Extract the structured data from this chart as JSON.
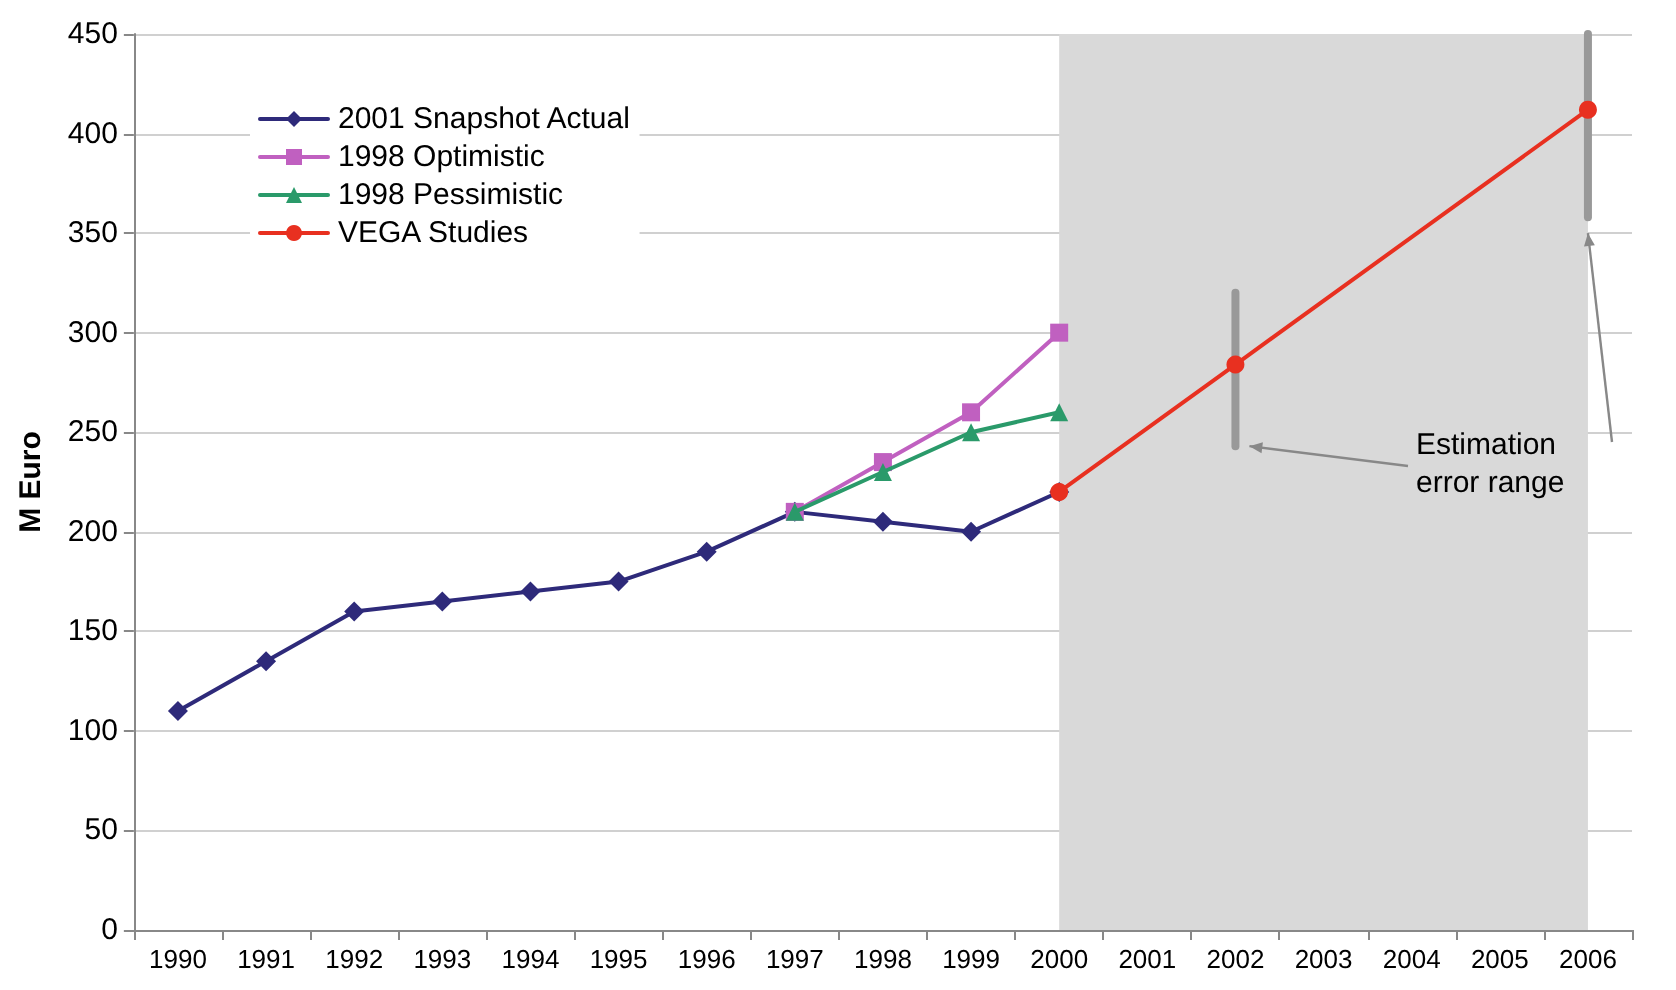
{
  "chart_data": {
    "type": "line",
    "ylabel": "M Euro",
    "categories": [
      "1990",
      "1991",
      "1992",
      "1993",
      "1994",
      "1995",
      "1996",
      "1997",
      "1998",
      "1999",
      "2000",
      "2001",
      "2002",
      "2003",
      "2004",
      "2005",
      "2006"
    ],
    "series": [
      {
        "name": "2001 Snapshot Actual",
        "color": "#2e2a7a",
        "marker": "diamond",
        "values": [
          110,
          135,
          160,
          165,
          170,
          175,
          190,
          210,
          205,
          200,
          220,
          null,
          null,
          null,
          null,
          null,
          null
        ]
      },
      {
        "name": "1998 Optimistic",
        "color": "#c060c0",
        "marker": "square",
        "values": [
          null,
          null,
          null,
          null,
          null,
          null,
          null,
          210,
          235,
          260,
          300,
          null,
          null,
          null,
          null,
          null,
          null
        ]
      },
      {
        "name": "1998 Pessimistic",
        "color": "#2a9a6a",
        "marker": "triangle",
        "values": [
          null,
          null,
          null,
          null,
          null,
          null,
          null,
          210,
          230,
          250,
          260,
          null,
          null,
          null,
          null,
          null,
          null
        ]
      },
      {
        "name": "VEGA Studies",
        "color": "#e83020",
        "marker": "circle",
        "values": [
          null,
          null,
          null,
          null,
          null,
          null,
          null,
          null,
          null,
          null,
          220,
          null,
          284,
          null,
          null,
          null,
          412
        ],
        "errors": [
          null,
          null,
          null,
          null,
          null,
          null,
          null,
          null,
          null,
          null,
          null,
          null,
          [
            243,
            320
          ],
          null,
          null,
          null,
          [
            358,
            450
          ]
        ]
      }
    ],
    "ylim": [
      0,
      450
    ],
    "yticks": [
      0,
      50,
      100,
      150,
      200,
      250,
      300,
      350,
      400,
      450
    ],
    "grid": "y",
    "legend": "top left",
    "bands": [
      {
        "axis": "x",
        "from": "2000",
        "to": "2006",
        "color": "#d9d9d9"
      }
    ],
    "annotations": [
      "Estimation error range"
    ]
  }
}
